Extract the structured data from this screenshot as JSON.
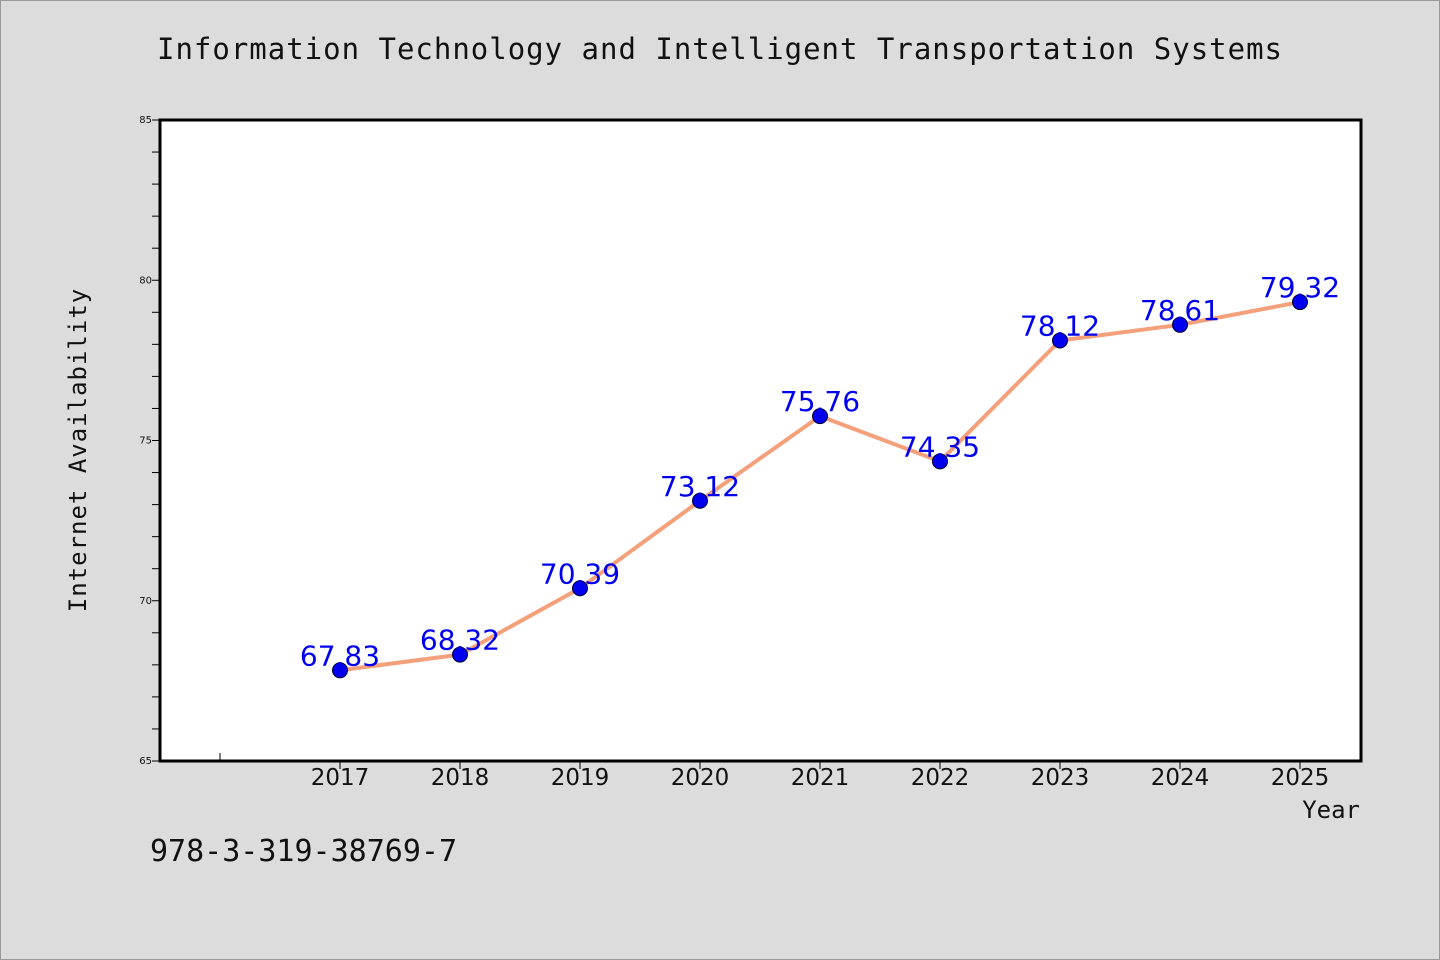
{
  "chart_data": {
    "type": "line",
    "title": "Information Technology and Intelligent Transportation Systems",
    "xlabel": "Year",
    "ylabel": "Internet Availability",
    "categories": [
      "2017",
      "2018",
      "2019",
      "2020",
      "2021",
      "2022",
      "2023",
      "2024",
      "2025"
    ],
    "series": [
      {
        "values": [
          67.83,
          68.32,
          70.39,
          73.12,
          75.76,
          74.35,
          78.12,
          78.61,
          79.32
        ],
        "data_labels": [
          "67.83",
          "68.32",
          "70.39",
          "73.12",
          "75.76",
          "74.35",
          "78.12",
          "78.61",
          "79.32"
        ],
        "line_color": "#f4a07a",
        "marker_color": "#0000ee",
        "label_color": "#0000ee"
      }
    ],
    "y_ticks": [
      "65",
      "70",
      "75",
      "80",
      "85"
    ],
    "ylim": [
      65,
      85
    ],
    "grid": false,
    "legend": "none"
  },
  "footer_text": "978-3-319-38769-7",
  "colors": {
    "background": "#dcdcdc",
    "plot_background": "#ffffff",
    "axis": "#000000"
  }
}
